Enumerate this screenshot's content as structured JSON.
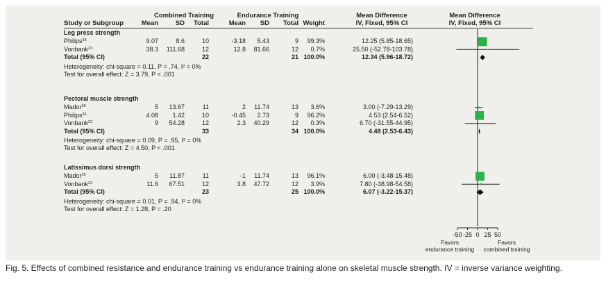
{
  "headers": {
    "group1": "Combined Training",
    "group2": "Endurance Training",
    "md_title": "Mean Difference",
    "md_method": "IV, Fixed, 95% CI",
    "plot_title": "Mean Difference",
    "plot_method": "IV, Fixed, 95% CI",
    "study": "Study or Subgroup",
    "mean": "Mean",
    "sd": "SD",
    "total": "Total",
    "weight": "Weight"
  },
  "subgroups": [
    {
      "title": "Leg press strength",
      "studies": [
        {
          "name": "Philips",
          "ref": "36",
          "m1": "9.07",
          "sd1": "8.6",
          "n1": "10",
          "m2": "-3.18",
          "sd2": "5.43",
          "n2": "9",
          "weight": "99.3%",
          "ci": "12.25 (5.85-18.65)",
          "md": 12.25,
          "lo": 5.85,
          "hi": 18.65,
          "w": 99.3
        },
        {
          "name": "Vonbank",
          "ref": "23",
          "m1": "38.3",
          "sd1": "111.68",
          "n1": "12",
          "m2": "12.8",
          "sd2": "81.66",
          "n2": "12",
          "weight": "0.7%",
          "ci": "25.50 (-52.78-103.78)",
          "md": 25.5,
          "lo": -52.78,
          "hi": 103.78,
          "w": 0.7
        }
      ],
      "total": {
        "label": "Total (95% CI)",
        "n1": "22",
        "n2": "21",
        "weight": "100.0%",
        "ci": "12.34 (5.96-18.72)",
        "md": 12.34,
        "lo": 5.96,
        "hi": 18.72
      },
      "heterogeneity": "Heterogeneity: chi-square = 0.11, P = .74, I² = 0%",
      "overall": "Test for overall effect: Z = 3.79, P < .001"
    },
    {
      "title": "Pectoral muscle strength",
      "studies": [
        {
          "name": "Mador",
          "ref": "35",
          "m1": "5",
          "sd1": "13.67",
          "n1": "11",
          "m2": "2",
          "sd2": "11.74",
          "n2": "13",
          "weight": "3.6%",
          "ci": "3.00 (-7.29-13.29)",
          "md": 3.0,
          "lo": -7.29,
          "hi": 13.29,
          "w": 3.6
        },
        {
          "name": "Philips",
          "ref": "36",
          "m1": "4.08",
          "sd1": "1.42",
          "n1": "10",
          "m2": "-0.45",
          "sd2": "2.73",
          "n2": "9",
          "weight": "96.2%",
          "ci": "4.53 (2.54-6.52)",
          "md": 4.53,
          "lo": 2.54,
          "hi": 6.52,
          "w": 96.2
        },
        {
          "name": "Vonbank",
          "ref": "23",
          "m1": "9",
          "sd1": "54.28",
          "n1": "12",
          "m2": "2.3",
          "sd2": "40.29",
          "n2": "12",
          "weight": "0.3%",
          "ci": "6.70 (-31.55-44.95)",
          "md": 6.7,
          "lo": -31.55,
          "hi": 44.95,
          "w": 0.3
        }
      ],
      "total": {
        "label": "Total (95% CI)",
        "n1": "33",
        "n2": "34",
        "weight": "100.0%",
        "ci": "4.48 (2.53-6.43)",
        "md": 4.48,
        "lo": 2.53,
        "hi": 6.43
      },
      "heterogeneity": "Heterogeneity: chi-square = 0.09, P = .95, I² = 0%",
      "overall": "Test for overall effect: Z = 4.50, P < .001"
    },
    {
      "title": "Latissimus dorsi strength",
      "studies": [
        {
          "name": "Mador",
          "ref": "35",
          "m1": "5",
          "sd1": "11.87",
          "n1": "11",
          "m2": "-1",
          "sd2": "11.74",
          "n2": "13",
          "weight": "96.1%",
          "ci": "6.00 (-3.48-15.48)",
          "md": 6.0,
          "lo": -3.48,
          "hi": 15.48,
          "w": 96.1
        },
        {
          "name": "Vonbank",
          "ref": "23",
          "m1": "11.6",
          "sd1": "67.51",
          "n1": "12",
          "m2": "3.8",
          "sd2": "47.72",
          "n2": "12",
          "weight": "3.9%",
          "ci": "7.80 (-38.98-54.58)",
          "md": 7.8,
          "lo": -38.98,
          "hi": 54.58,
          "w": 3.9
        }
      ],
      "total": {
        "label": "Total (95% CI)",
        "n1": "23",
        "n2": "25",
        "weight": "100.0%",
        "ci": "6.07 (-3.22-15.37)",
        "md": 6.07,
        "lo": -3.22,
        "hi": 15.37
      },
      "heterogeneity": "Heterogeneity: chi-square = 0.01, P = .94, I² = 0%",
      "overall": "Test for overall effect: Z = 1.28, P = .20"
    }
  ],
  "axis": {
    "ticks": [
      -50,
      -25,
      0,
      25,
      50
    ],
    "tick_labels": [
      "-50",
      "-25",
      "0",
      "25",
      "50"
    ],
    "favors_left": [
      "Favors",
      "endurance training"
    ],
    "favors_right": [
      "Favors",
      "combined training"
    ]
  },
  "colors": {
    "marker": "#2eb24a",
    "panel": "#f1efeb",
    "line": "#222222"
  },
  "caption": "Fig. 5. Effects of combined resistance and endurance training vs endurance training alone on skeletal muscle strength. IV = inverse variance weighting."
}
